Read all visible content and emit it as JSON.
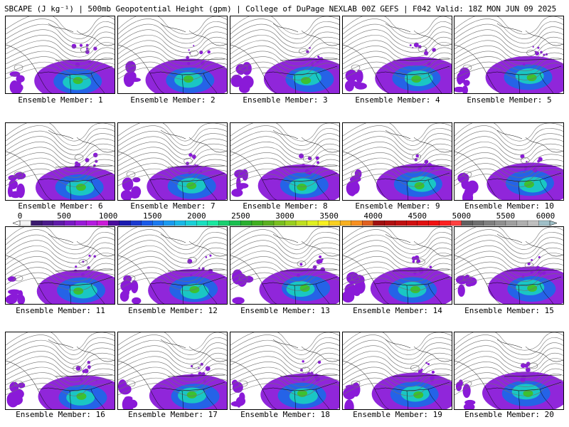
{
  "title": "SBCAPE (J kg⁻¹) | 500mb Geopotential Height (gpm) | College of DuPage NEXLAB 00Z GEFS | F042 Valid: 18Z MON JUN 09 2025",
  "members": [
    "Ensemble Member: 1",
    "Ensemble Member: 2",
    "Ensemble Member: 3",
    "Ensemble Member: 4",
    "Ensemble Member: 5",
    "Ensemble Member: 6",
    "Ensemble Member: 7",
    "Ensemble Member: 8",
    "Ensemble Member: 9",
    "Ensemble Member: 10",
    "Ensemble Member: 11",
    "Ensemble Member: 12",
    "Ensemble Member: 13",
    "Ensemble Member: 14",
    "Ensemble Member: 15",
    "Ensemble Member: 16",
    "Ensemble Member: 17",
    "Ensemble Member: 18",
    "Ensemble Member: 19",
    "Ensemble Member: 20"
  ],
  "colorbar": {
    "tick_labels": [
      "0",
      "500",
      "1000",
      "1500",
      "2000",
      "2500",
      "3000",
      "3500",
      "4000",
      "4500",
      "5000",
      "5500",
      "6000"
    ],
    "colors": [
      "#f5f5f5",
      "#3b1a6e",
      "#4b1a8a",
      "#5f1aa8",
      "#7a1ac4",
      "#9a1ad8",
      "#b51ae0",
      "#cc1ad8",
      "#4a0a9c",
      "#1a1ab0",
      "#1a3ad0",
      "#1a5ae8",
      "#1a7af0",
      "#1a9af0",
      "#1ab8e8",
      "#1ad0d8",
      "#1ae0c0",
      "#1ae8a0",
      "#1ad070",
      "#1ac050",
      "#2ab030",
      "#40b020",
      "#5ab020",
      "#7ac020",
      "#9ad020",
      "#c0e020",
      "#e0f020",
      "#f8f020",
      "#f8d020",
      "#f8b020",
      "#f89020",
      "#e06020",
      "#a01010",
      "#b01010",
      "#c01010",
      "#d01010",
      "#e01010",
      "#f01010",
      "#ff2020",
      "#ff4040",
      "#606060",
      "#707070",
      "#808080",
      "#909090",
      "#a0a0a0",
      "#b0b0b0",
      "#c0c0c0",
      "#a0c0c8"
    ]
  },
  "legend_colors": {
    "cape_low": "#8a1ad8",
    "cape_mid": "#1a6ae8",
    "cape_mid2": "#1ad0c0",
    "cape_high": "#40c020",
    "contour": "#707070",
    "border": "#000000"
  }
}
